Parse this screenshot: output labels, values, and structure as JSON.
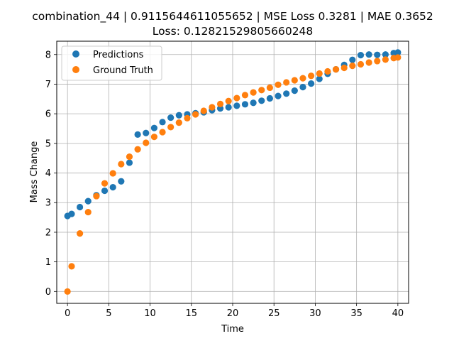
{
  "chart_data": {
    "type": "scatter",
    "title_line1": "combination_44 | 0.9115644611055652 | MSE Loss 0.3281 | MAE 0.3652",
    "title_line2": "Loss: 0.12821529805660248",
    "xlabel": "Time",
    "ylabel": "Mass Change",
    "xlim": [
      -1.3,
      41.3
    ],
    "ylim": [
      -0.4,
      8.45
    ],
    "xticks": [
      0,
      5,
      10,
      15,
      20,
      25,
      30,
      35,
      40
    ],
    "yticks": [
      0,
      1,
      2,
      3,
      4,
      5,
      6,
      7,
      8
    ],
    "grid": true,
    "legend_position": "top-left",
    "series": [
      {
        "name": "Predictions",
        "color": "#1f77b4",
        "points": [
          [
            0,
            2.55
          ],
          [
            0.5,
            2.62
          ],
          [
            1.5,
            2.85
          ],
          [
            2.5,
            3.05
          ],
          [
            3.5,
            3.25
          ],
          [
            4.5,
            3.4
          ],
          [
            5.5,
            3.52
          ],
          [
            6.5,
            3.72
          ],
          [
            7.5,
            4.35
          ],
          [
            8.5,
            5.3
          ],
          [
            9.5,
            5.35
          ],
          [
            10.5,
            5.52
          ],
          [
            11.5,
            5.72
          ],
          [
            12.5,
            5.87
          ],
          [
            13.5,
            5.95
          ],
          [
            14.5,
            5.98
          ],
          [
            15.5,
            6.02
          ],
          [
            16.5,
            6.05
          ],
          [
            17.5,
            6.12
          ],
          [
            18.5,
            6.18
          ],
          [
            19.5,
            6.22
          ],
          [
            20.5,
            6.27
          ],
          [
            21.5,
            6.32
          ],
          [
            22.5,
            6.37
          ],
          [
            23.5,
            6.44
          ],
          [
            24.5,
            6.52
          ],
          [
            25.5,
            6.6
          ],
          [
            26.5,
            6.68
          ],
          [
            27.5,
            6.78
          ],
          [
            28.5,
            6.9
          ],
          [
            29.5,
            7.02
          ],
          [
            30.5,
            7.18
          ],
          [
            31.5,
            7.35
          ],
          [
            32.5,
            7.5
          ],
          [
            33.5,
            7.65
          ],
          [
            34.5,
            7.82
          ],
          [
            35.5,
            7.98
          ],
          [
            36.5,
            8.0
          ],
          [
            37.5,
            7.99
          ],
          [
            38.5,
            8.0
          ],
          [
            39.5,
            8.05
          ],
          [
            40,
            8.07
          ]
        ]
      },
      {
        "name": "Ground Truth",
        "color": "#ff7f0e",
        "points": [
          [
            0,
            0.0
          ],
          [
            0.5,
            0.85
          ],
          [
            1.5,
            1.96
          ],
          [
            2.5,
            2.68
          ],
          [
            3.5,
            3.22
          ],
          [
            4.5,
            3.65
          ],
          [
            5.5,
            3.99
          ],
          [
            6.5,
            4.3
          ],
          [
            7.5,
            4.55
          ],
          [
            8.5,
            4.8
          ],
          [
            9.5,
            5.02
          ],
          [
            10.5,
            5.22
          ],
          [
            11.5,
            5.38
          ],
          [
            12.5,
            5.55
          ],
          [
            13.5,
            5.7
          ],
          [
            14.5,
            5.85
          ],
          [
            15.5,
            5.98
          ],
          [
            16.5,
            6.1
          ],
          [
            17.5,
            6.22
          ],
          [
            18.5,
            6.33
          ],
          [
            19.5,
            6.43
          ],
          [
            20.5,
            6.53
          ],
          [
            21.5,
            6.63
          ],
          [
            22.5,
            6.72
          ],
          [
            23.5,
            6.8
          ],
          [
            24.5,
            6.88
          ],
          [
            25.5,
            6.98
          ],
          [
            26.5,
            7.06
          ],
          [
            27.5,
            7.13
          ],
          [
            28.5,
            7.2
          ],
          [
            29.5,
            7.28
          ],
          [
            30.5,
            7.36
          ],
          [
            31.5,
            7.43
          ],
          [
            32.5,
            7.5
          ],
          [
            33.5,
            7.55
          ],
          [
            34.5,
            7.62
          ],
          [
            35.5,
            7.67
          ],
          [
            36.5,
            7.73
          ],
          [
            37.5,
            7.78
          ],
          [
            38.5,
            7.83
          ],
          [
            39.5,
            7.88
          ],
          [
            40,
            7.9
          ]
        ]
      }
    ]
  }
}
